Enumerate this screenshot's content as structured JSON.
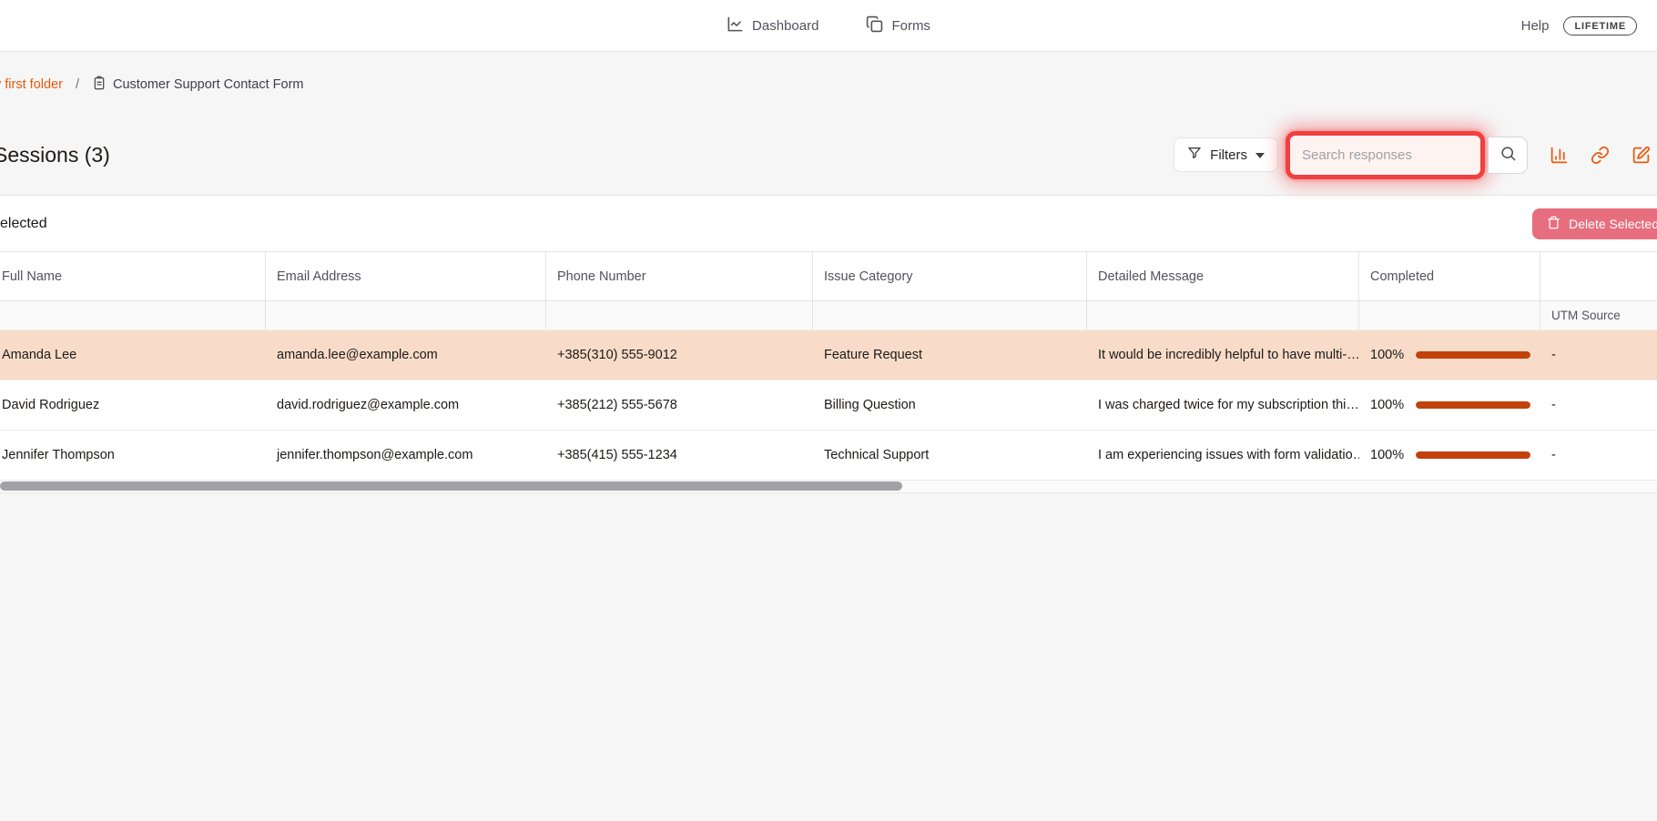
{
  "nav": {
    "dashboard_label": "Dashboard",
    "forms_label": "Forms",
    "help_label": "Help",
    "plan_badge": "LIFETIME"
  },
  "breadcrumb": {
    "folder": "y first folder",
    "separator": "/",
    "form_name": "Customer Support Contact Form"
  },
  "toolbar": {
    "title": "Sessions (3)",
    "filters_label": "Filters",
    "search_placeholder": "Search responses"
  },
  "selection_bar": {
    "selected_text": "elected",
    "delete_button_label": "Delete Selected"
  },
  "table": {
    "columns": {
      "full_name": "Full Name",
      "email": "Email Address",
      "phone": "Phone Number",
      "issue": "Issue Category",
      "message": "Detailed Message",
      "completed": "Completed"
    },
    "sub_columns": {
      "utm_source": "UTM Source"
    },
    "rows": [
      {
        "full_name": "Amanda Lee",
        "email": "amanda.lee@example.com",
        "phone": "+385(310) 555-9012",
        "issue": "Feature Request",
        "message": "It would be incredibly helpful to have multi-…",
        "completed": "100%",
        "completed_pct": 100,
        "utm_source": "-"
      },
      {
        "full_name": "David Rodriguez",
        "email": "david.rodriguez@example.com",
        "phone": "+385(212) 555-5678",
        "issue": "Billing Question",
        "message": "I was charged twice for my subscription thi…",
        "completed": "100%",
        "completed_pct": 100,
        "utm_source": "-"
      },
      {
        "full_name": "Jennifer Thompson",
        "email": "jennifer.thompson@example.com",
        "phone": "+385(415) 555-1234",
        "issue": "Technical Support",
        "message": "I am experiencing issues with form validatio…",
        "completed": "100%",
        "completed_pct": 100,
        "utm_source": "-"
      }
    ]
  },
  "icons": {
    "nav_dashboard": "line-chart-icon",
    "nav_forms": "copy-stack-icon",
    "breadcrumb_form": "clipboard-icon",
    "filters": "funnel-icon",
    "search": "magnifier-icon",
    "analytics": "bar-chart-icon",
    "share_link": "link-icon",
    "edit": "square-pen-icon",
    "delete": "trash-icon"
  },
  "colors": {
    "accent_orange": "#ea580c",
    "progress_bar": "#c2410c",
    "highlight_row": "#f8dcc9",
    "delete_button": "#e76e7e",
    "annotation_red": "#f04040",
    "page_background": "#f6f6f7"
  }
}
